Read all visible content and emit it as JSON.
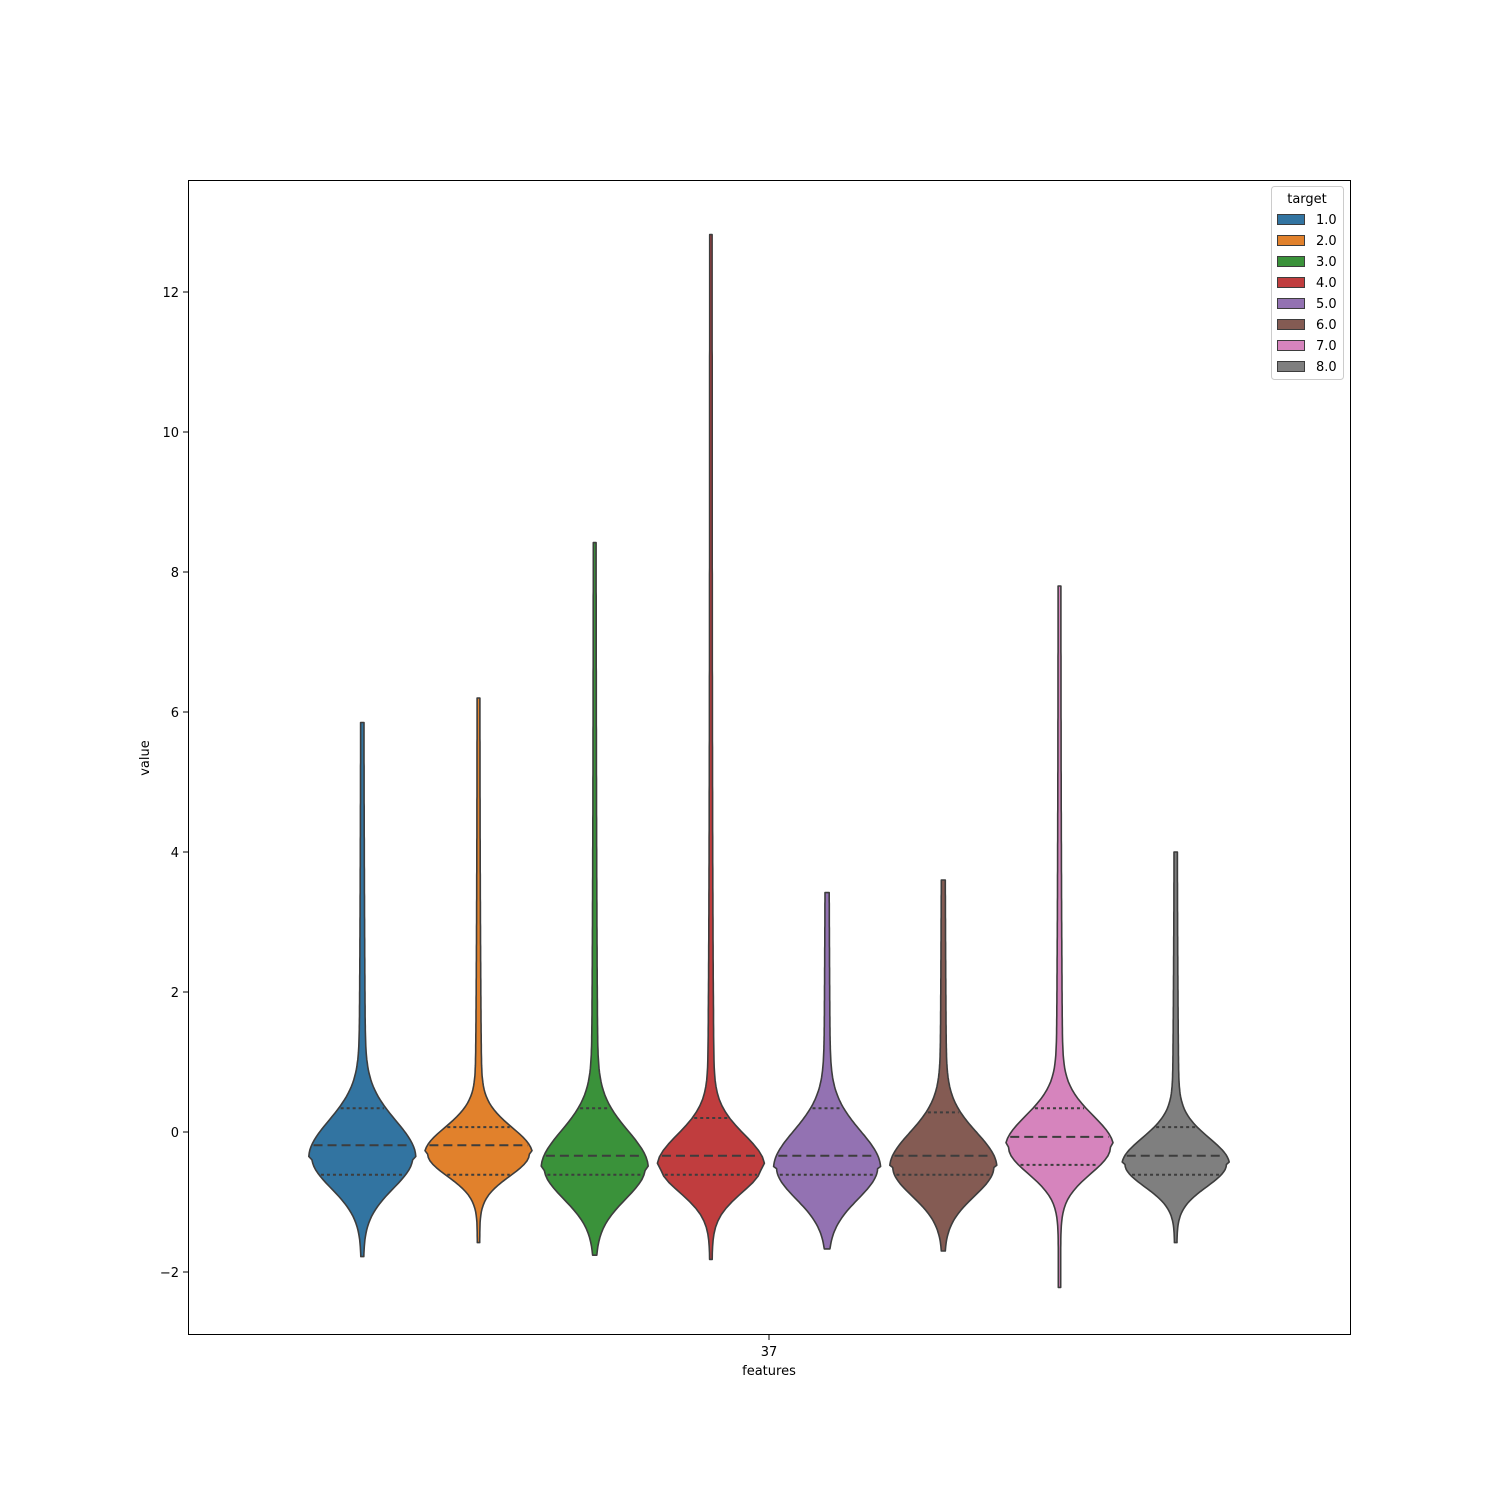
{
  "chart_data": {
    "type": "violin",
    "xlabel": "features",
    "ylabel": "value",
    "categories": [
      "37"
    ],
    "ylim": [
      -2.9,
      13.6
    ],
    "yticks": [
      -2,
      0,
      2,
      4,
      6,
      8,
      10,
      12
    ],
    "inner": "quartile",
    "legend": {
      "title": "target",
      "position": "top-right",
      "entries": [
        "1.0",
        "2.0",
        "3.0",
        "4.0",
        "5.0",
        "6.0",
        "7.0",
        "8.0"
      ]
    },
    "series": [
      {
        "name": "1.0",
        "color": "#3274a1",
        "min": -1.78,
        "q1": -0.61,
        "median": -0.19,
        "q3": 0.34,
        "max": 5.85
      },
      {
        "name": "2.0",
        "color": "#e1812c",
        "min": -1.58,
        "q1": -0.61,
        "median": -0.19,
        "q3": 0.07,
        "max": 6.2
      },
      {
        "name": "3.0",
        "color": "#3a923a",
        "min": -1.76,
        "q1": -0.61,
        "median": -0.34,
        "q3": 0.34,
        "max": 8.42
      },
      {
        "name": "4.0",
        "color": "#c03d3e",
        "min": -1.82,
        "q1": -0.61,
        "median": -0.34,
        "q3": 0.2,
        "max": 12.82
      },
      {
        "name": "5.0",
        "color": "#9372b2",
        "min": -1.67,
        "q1": -0.61,
        "median": -0.34,
        "q3": 0.34,
        "max": 3.42
      },
      {
        "name": "6.0",
        "color": "#845b53",
        "min": -1.7,
        "q1": -0.61,
        "median": -0.34,
        "q3": 0.28,
        "max": 3.6
      },
      {
        "name": "7.0",
        "color": "#d684bd",
        "min": -2.22,
        "q1": -0.47,
        "median": -0.07,
        "q3": 0.34,
        "max": 7.8
      },
      {
        "name": "8.0",
        "color": "#7f7f7f",
        "min": -1.58,
        "q1": -0.61,
        "median": -0.34,
        "q3": 0.07,
        "max": 4.0
      }
    ]
  }
}
